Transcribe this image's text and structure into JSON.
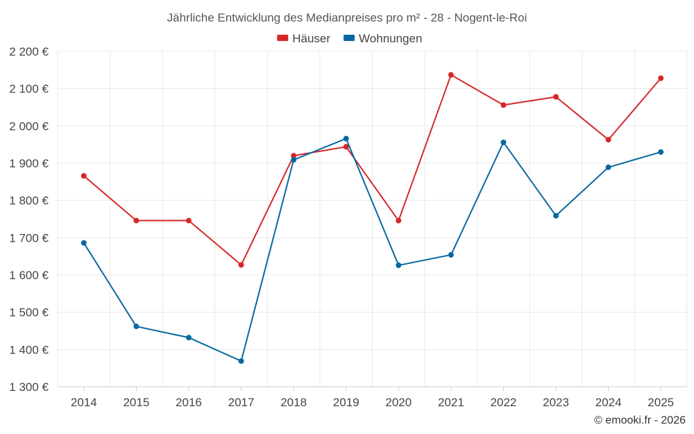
{
  "chart_data": {
    "type": "line",
    "title": "Jährliche Entwicklung des Medianpreises pro m² - 28 - Nogent-le-Roi",
    "categories": [
      "2014",
      "2015",
      "2016",
      "2017",
      "2018",
      "2019",
      "2020",
      "2021",
      "2022",
      "2023",
      "2024",
      "2025"
    ],
    "series": [
      {
        "name": "Häuser",
        "color": "#d62728",
        "values": [
          1866,
          1746,
          1746,
          1627,
          1920,
          1944,
          1746,
          2137,
          2056,
          2078,
          1963,
          2128
        ]
      },
      {
        "name": "Wohnungen",
        "color": "#0868a0",
        "values": [
          1686,
          1462,
          1432,
          1369,
          1909,
          1966,
          1626,
          1654,
          1956,
          1759,
          1889,
          1930
        ]
      }
    ],
    "ylim": [
      1300,
      2200
    ],
    "yticks": [
      1300,
      1400,
      1500,
      1600,
      1700,
      1800,
      1900,
      2000,
      2100,
      2200
    ],
    "ytick_labels": [
      "1 300 €",
      "1 400 €",
      "1 500 €",
      "1 600 €",
      "1 700 €",
      "1 800 €",
      "1 900 €",
      "2 000 €",
      "2 100 €",
      "2 200 €"
    ],
    "grid": true,
    "legend_position": "top-center",
    "xlabel": "",
    "ylabel": ""
  },
  "credit": "© emooki.fr - 2026"
}
